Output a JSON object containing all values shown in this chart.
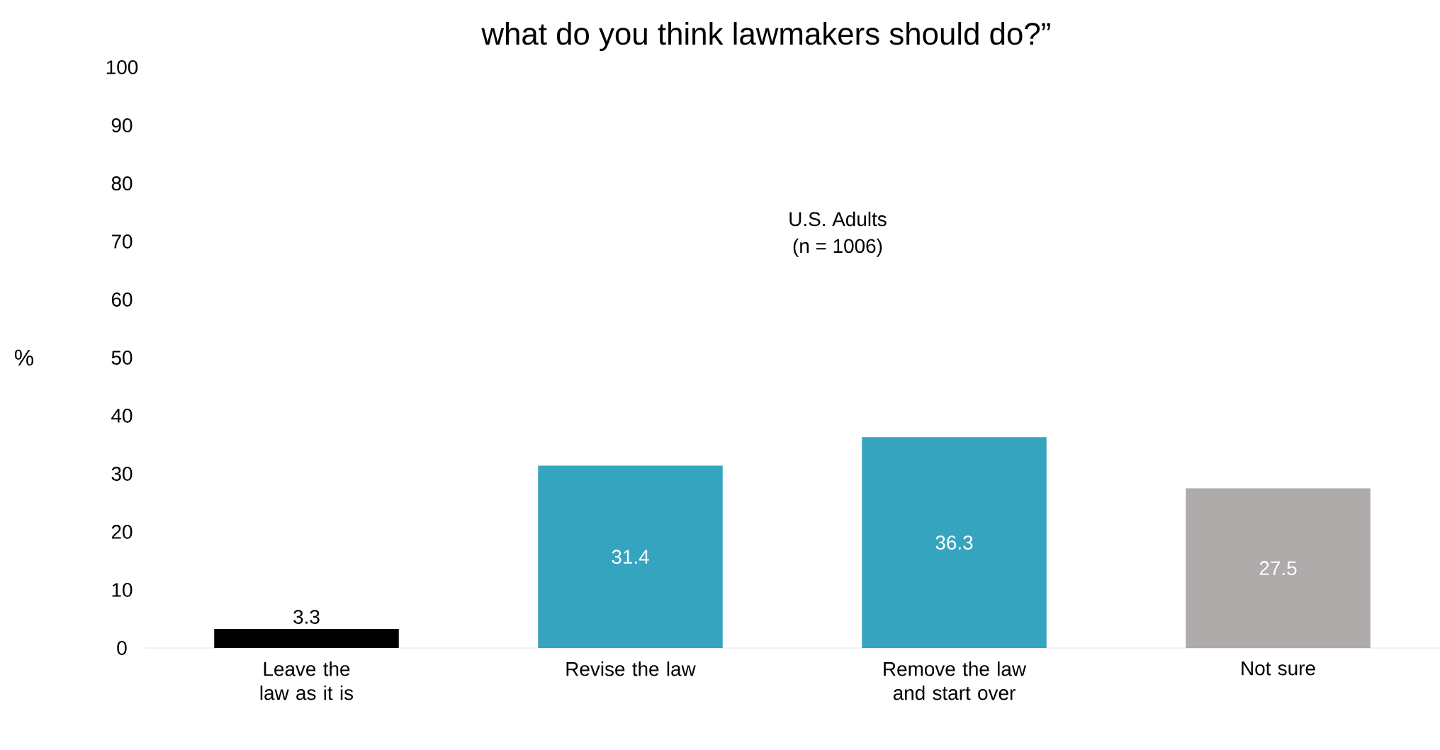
{
  "chart_data": {
    "type": "bar",
    "title": "what do you think lawmakers should do?”",
    "ylabel": "%",
    "annotations": [
      "U.S. Adults",
      "(n = 1006)"
    ],
    "categories": [
      "Leave the law as it is",
      "Revise the law",
      "Remove the law and start over",
      "Not sure"
    ],
    "values": [
      3.3,
      31.4,
      36.3,
      27.5
    ],
    "colors": [
      "#000000",
      "#35a5bf",
      "#35a5bf",
      "#aeabaa"
    ],
    "ylim": [
      0,
      100
    ],
    "yticks": [
      0,
      10,
      20,
      30,
      40,
      50,
      60,
      70,
      80,
      90,
      100
    ],
    "data_labels": true
  }
}
